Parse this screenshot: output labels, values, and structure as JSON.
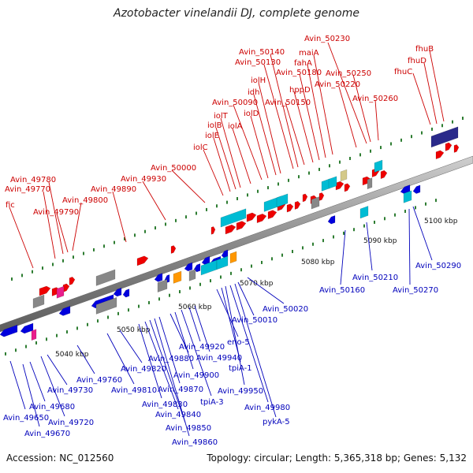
{
  "title": "Azotobacter vinelandii DJ, complete genome",
  "footer": {
    "accession": "Accession: NC_012560",
    "summary": "Topology: circular; Length: 5,365,318 bp; Genes: 5,132"
  },
  "colors": {
    "forward_gene": "#ee0000",
    "reverse_gene": "#0000dd",
    "forward_label": "#cc0000",
    "reverse_label": "#0000bb",
    "rna": "#00bcd4",
    "pseudo": "#888888",
    "other": "#e91e8c",
    "misc": "#ff9800",
    "backbone": "#9a9a9a",
    "ticks": "#2e7d32"
  },
  "kbp_marks": [
    "5040 kbp",
    "5050 kbp",
    "5060 kbp",
    "5070 kbp",
    "5080 kbp",
    "5090 kbp",
    "5100 kbp"
  ],
  "forward_labels": [
    "fic",
    "Avin_49770",
    "Avin_49780",
    "Avin_49790",
    "Avin_49800",
    "Avin_49890",
    "Avin_49930",
    "Avin_50000",
    "iolC",
    "iolE",
    "iolB",
    "iolT",
    "iolA",
    "Avin_50090",
    "iolD",
    "idh",
    "iolH",
    "Avin_50130",
    "Avin_50140",
    "Avin_50150",
    "Avin_50180",
    "fahA",
    "hppD",
    "maiA",
    "Avin_50220",
    "Avin_50230",
    "Avin_50250",
    "Avin_50260",
    "fhuC",
    "fhuD",
    "fhuB"
  ],
  "reverse_labels": [
    "Avin_49650",
    "Avin_49670",
    "Avin_49680",
    "Avin_49720",
    "Avin_49730",
    "Avin_49760",
    "Avin_49810",
    "Avin_49820",
    "Avin_49830",
    "Avin_49840",
    "Avin_49850",
    "Avin_49860",
    "Avin_49870",
    "Avin_49880",
    "Avin_49900",
    "Avin_49920",
    "Avin_49940",
    "tpiA-3",
    "eno-5",
    "tpiA-1",
    "Avin_49950",
    "Avin_49980",
    "pykA-5",
    "Avin_50010",
    "Avin_50020",
    "Avin_50160",
    "Avin_50210",
    "Avin_50270",
    "Avin_50290"
  ]
}
